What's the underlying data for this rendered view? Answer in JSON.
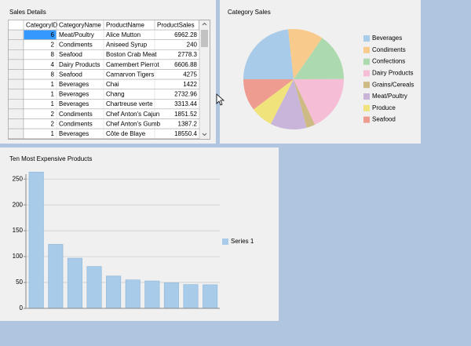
{
  "table": {
    "title": "Sales Details",
    "columns": [
      "CategoryID",
      "CategoryName",
      "ProductName",
      "ProductSales"
    ],
    "rows": [
      [
        "6",
        "Meat/Poultry",
        "Alice Mutton",
        "6962.28"
      ],
      [
        "2",
        "Condiments",
        "Aniseed Syrup",
        "240"
      ],
      [
        "8",
        "Seafood",
        "Boston Crab Meat",
        "2778.3"
      ],
      [
        "4",
        "Dairy Products",
        "Camembert Pierrot",
        "6606.88"
      ],
      [
        "8",
        "Seafood",
        "Carnarvon Tigers",
        "4275"
      ],
      [
        "1",
        "Beverages",
        "Chai",
        "1422"
      ],
      [
        "1",
        "Beverages",
        "Chang",
        "2732.96"
      ],
      [
        "1",
        "Beverages",
        "Chartreuse verte",
        "3313.44"
      ],
      [
        "2",
        "Condiments",
        "Chef Anton's Cajun",
        "1851.52"
      ],
      [
        "2",
        "Condiments",
        "Chef Anton's Gumb",
        "1387.2"
      ],
      [
        "1",
        "Beverages",
        "Côte de Blaye",
        "18550.4"
      ]
    ]
  },
  "chart_data": [
    {
      "type": "pie",
      "title": "Category Sales",
      "categories": [
        "Beverages",
        "Condiments",
        "Confections",
        "Dairy Products",
        "Grains/Cereals",
        "Meat/Poultry",
        "Produce",
        "Seafood"
      ],
      "values": [
        23.3,
        11.4,
        15.3,
        18.1,
        2.8,
        11.7,
        7.2,
        10.3
      ],
      "colors": [
        "#a7cbe9",
        "#f8ca8c",
        "#add9ae",
        "#f6bed6",
        "#cdba84",
        "#c9b5da",
        "#f1e37c",
        "#ef9c90"
      ]
    },
    {
      "type": "bar",
      "title": "Ten Most Expensive Products",
      "categories": [
        null,
        null,
        null,
        null,
        null,
        null,
        null,
        null,
        null,
        null
      ],
      "series": [
        {
          "name": "Series 1",
          "color": "#a7cbe9",
          "values": [
            263.5,
            123.79,
            97,
            81,
            62.5,
            55,
            53,
            49.3,
            46,
            45.6
          ]
        }
      ],
      "ylim": [
        0,
        270
      ],
      "yticks": [
        0,
        50,
        100,
        150,
        200,
        250
      ],
      "grid": true
    }
  ]
}
